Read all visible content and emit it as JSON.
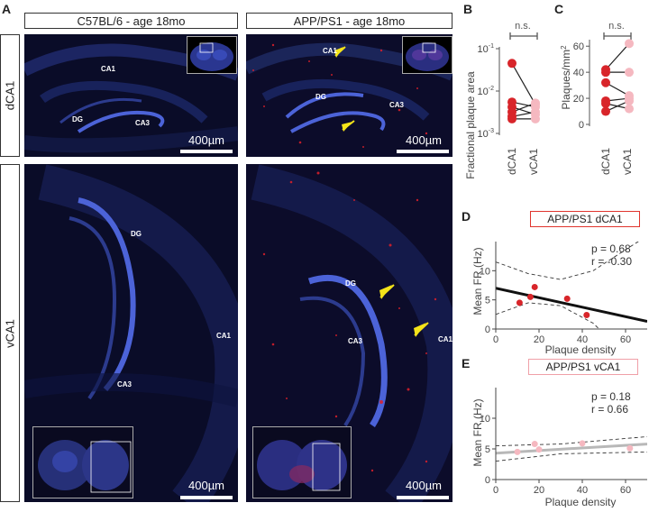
{
  "panels": {
    "A": "A",
    "B": "B",
    "C": "C",
    "D": "D",
    "E": "E"
  },
  "headers": {
    "wt": "C57BL/6 - age 18mo",
    "app": "APP/PS1 - age 18mo"
  },
  "rows": {
    "top": "dCA1",
    "bottom": "vCA1"
  },
  "regions": {
    "ca1": "CA1",
    "ca3": "CA3",
    "dg": "DG"
  },
  "scalebar": "400µm",
  "colors": {
    "tissue": "#0a0c28",
    "dapi": "#4c63d8",
    "plaque": "#e0202a",
    "arrow": "#f5e41a",
    "red_dark": "#d8252a",
    "red_light": "#f5b8c0",
    "border_d": "#e0352e",
    "border_e": "#f0a0a8"
  },
  "chart_b": {
    "type": "scatter-paired",
    "ylabel": "Fractional plaque area",
    "yscale": "log",
    "ylim": [
      0.001,
      0.1
    ],
    "yticks": [
      "10",
      "10",
      "10"
    ],
    "ytick_exp": [
      "-1",
      "-2",
      "-3"
    ],
    "categories": [
      "dCA1",
      "vCA1"
    ],
    "sig": "n.s.",
    "pairs": [
      [
        0.045,
        0.0048
      ],
      [
        0.0055,
        0.0042
      ],
      [
        0.0042,
        0.0028
      ],
      [
        0.0032,
        0.0052
      ],
      [
        0.0022,
        0.0022
      ],
      [
        0.0025,
        0.0032
      ]
    ]
  },
  "chart_c": {
    "type": "scatter-paired",
    "ylabel": "Plaques/mm",
    "ylabel_sup": "2",
    "ylim": [
      0,
      65
    ],
    "yticks": [
      "0",
      "20",
      "40",
      "60"
    ],
    "categories": [
      "dCA1",
      "vCA1"
    ],
    "sig": "n.s.",
    "pairs": [
      [
        42,
        62
      ],
      [
        40,
        40
      ],
      [
        32,
        22
      ],
      [
        18,
        20
      ],
      [
        16,
        12
      ],
      [
        10,
        18
      ]
    ]
  },
  "chart_d": {
    "type": "scatter",
    "title": "APP/PS1 dCA1",
    "xlabel": "Plaque density",
    "ylabel": "Mean FR (Hz)",
    "xlim": [
      0,
      70
    ],
    "ylim": [
      0,
      15
    ],
    "xticks": [
      "0",
      "20",
      "40",
      "60"
    ],
    "yticks": [
      "0",
      "5",
      "10"
    ],
    "stats": {
      "p": "p = 0.68",
      "r": "r = -0.30"
    },
    "points": [
      [
        11,
        4.5
      ],
      [
        16,
        5.5
      ],
      [
        18,
        7.2
      ],
      [
        33,
        5.2
      ],
      [
        42,
        2.4
      ]
    ],
    "fit": [
      [
        0,
        7
      ],
      [
        70,
        1.3
      ]
    ],
    "ci_upper": [
      [
        0,
        11.5
      ],
      [
        15,
        9.5
      ],
      [
        30,
        8.5
      ],
      [
        45,
        10
      ],
      [
        70,
        16
      ]
    ],
    "ci_lower": [
      [
        0,
        2.5
      ],
      [
        15,
        4.5
      ],
      [
        30,
        4
      ],
      [
        45,
        1
      ],
      [
        70,
        -8
      ]
    ]
  },
  "chart_e": {
    "type": "scatter",
    "title": "APP/PS1 vCA1",
    "xlabel": "Plaque density",
    "ylabel": "Mean FR (Hz)",
    "xlim": [
      0,
      70
    ],
    "ylim": [
      0,
      15
    ],
    "xticks": [
      "0",
      "20",
      "40",
      "60"
    ],
    "yticks": [
      "0",
      "5",
      "10"
    ],
    "stats": {
      "p": "p = 0.18",
      "r": "r = 0.66"
    },
    "points": [
      [
        10,
        4.5
      ],
      [
        18,
        5.8
      ],
      [
        20,
        4.9
      ],
      [
        40,
        5.9
      ],
      [
        62,
        5.1
      ]
    ],
    "fit": [
      [
        0,
        4.3
      ],
      [
        70,
        5.8
      ]
    ],
    "ci_upper": [
      [
        0,
        5.5
      ],
      [
        30,
        5.8
      ],
      [
        70,
        7
      ]
    ],
    "ci_lower": [
      [
        0,
        3
      ],
      [
        30,
        4.2
      ],
      [
        70,
        4.5
      ]
    ]
  }
}
